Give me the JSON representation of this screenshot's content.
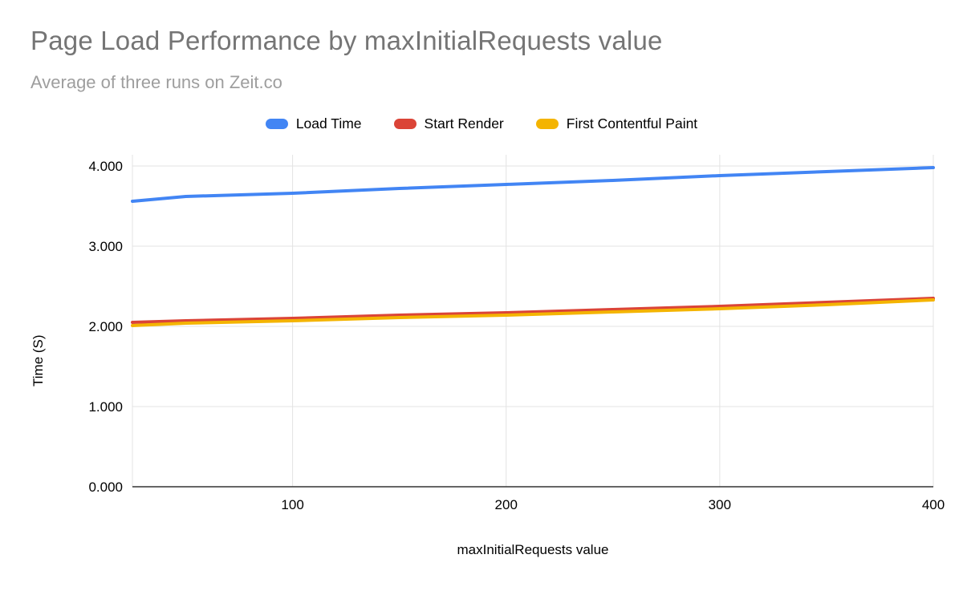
{
  "chart_data": {
    "type": "line",
    "title": "Page Load Performance by maxInitialRequests value",
    "subtitle": "Average of three runs on Zeit.co",
    "xlabel": "maxInitialRequests value",
    "ylabel": "Time (S)",
    "x": [
      25,
      50,
      100,
      150,
      200,
      250,
      300,
      350,
      400
    ],
    "x_ticks": [
      100,
      200,
      300,
      400
    ],
    "y_ticks": [
      0,
      1,
      2,
      3,
      4
    ],
    "y_tick_decimals": 3,
    "xlim": [
      25,
      400
    ],
    "ylim": [
      0,
      4
    ],
    "grid": true,
    "legend_position": "top",
    "series": [
      {
        "name": "Load Time",
        "color": "#4285f4",
        "values": [
          3.56,
          3.62,
          3.66,
          3.72,
          3.77,
          3.82,
          3.88,
          3.93,
          3.98
        ]
      },
      {
        "name": "Start Render",
        "color": "#db4437",
        "values": [
          2.05,
          2.07,
          2.1,
          2.14,
          2.17,
          2.21,
          2.25,
          2.3,
          2.35
        ]
      },
      {
        "name": "First Contentful Paint",
        "color": "#f4b400",
        "values": [
          2.01,
          2.04,
          2.07,
          2.11,
          2.14,
          2.18,
          2.22,
          2.27,
          2.33
        ]
      }
    ]
  }
}
